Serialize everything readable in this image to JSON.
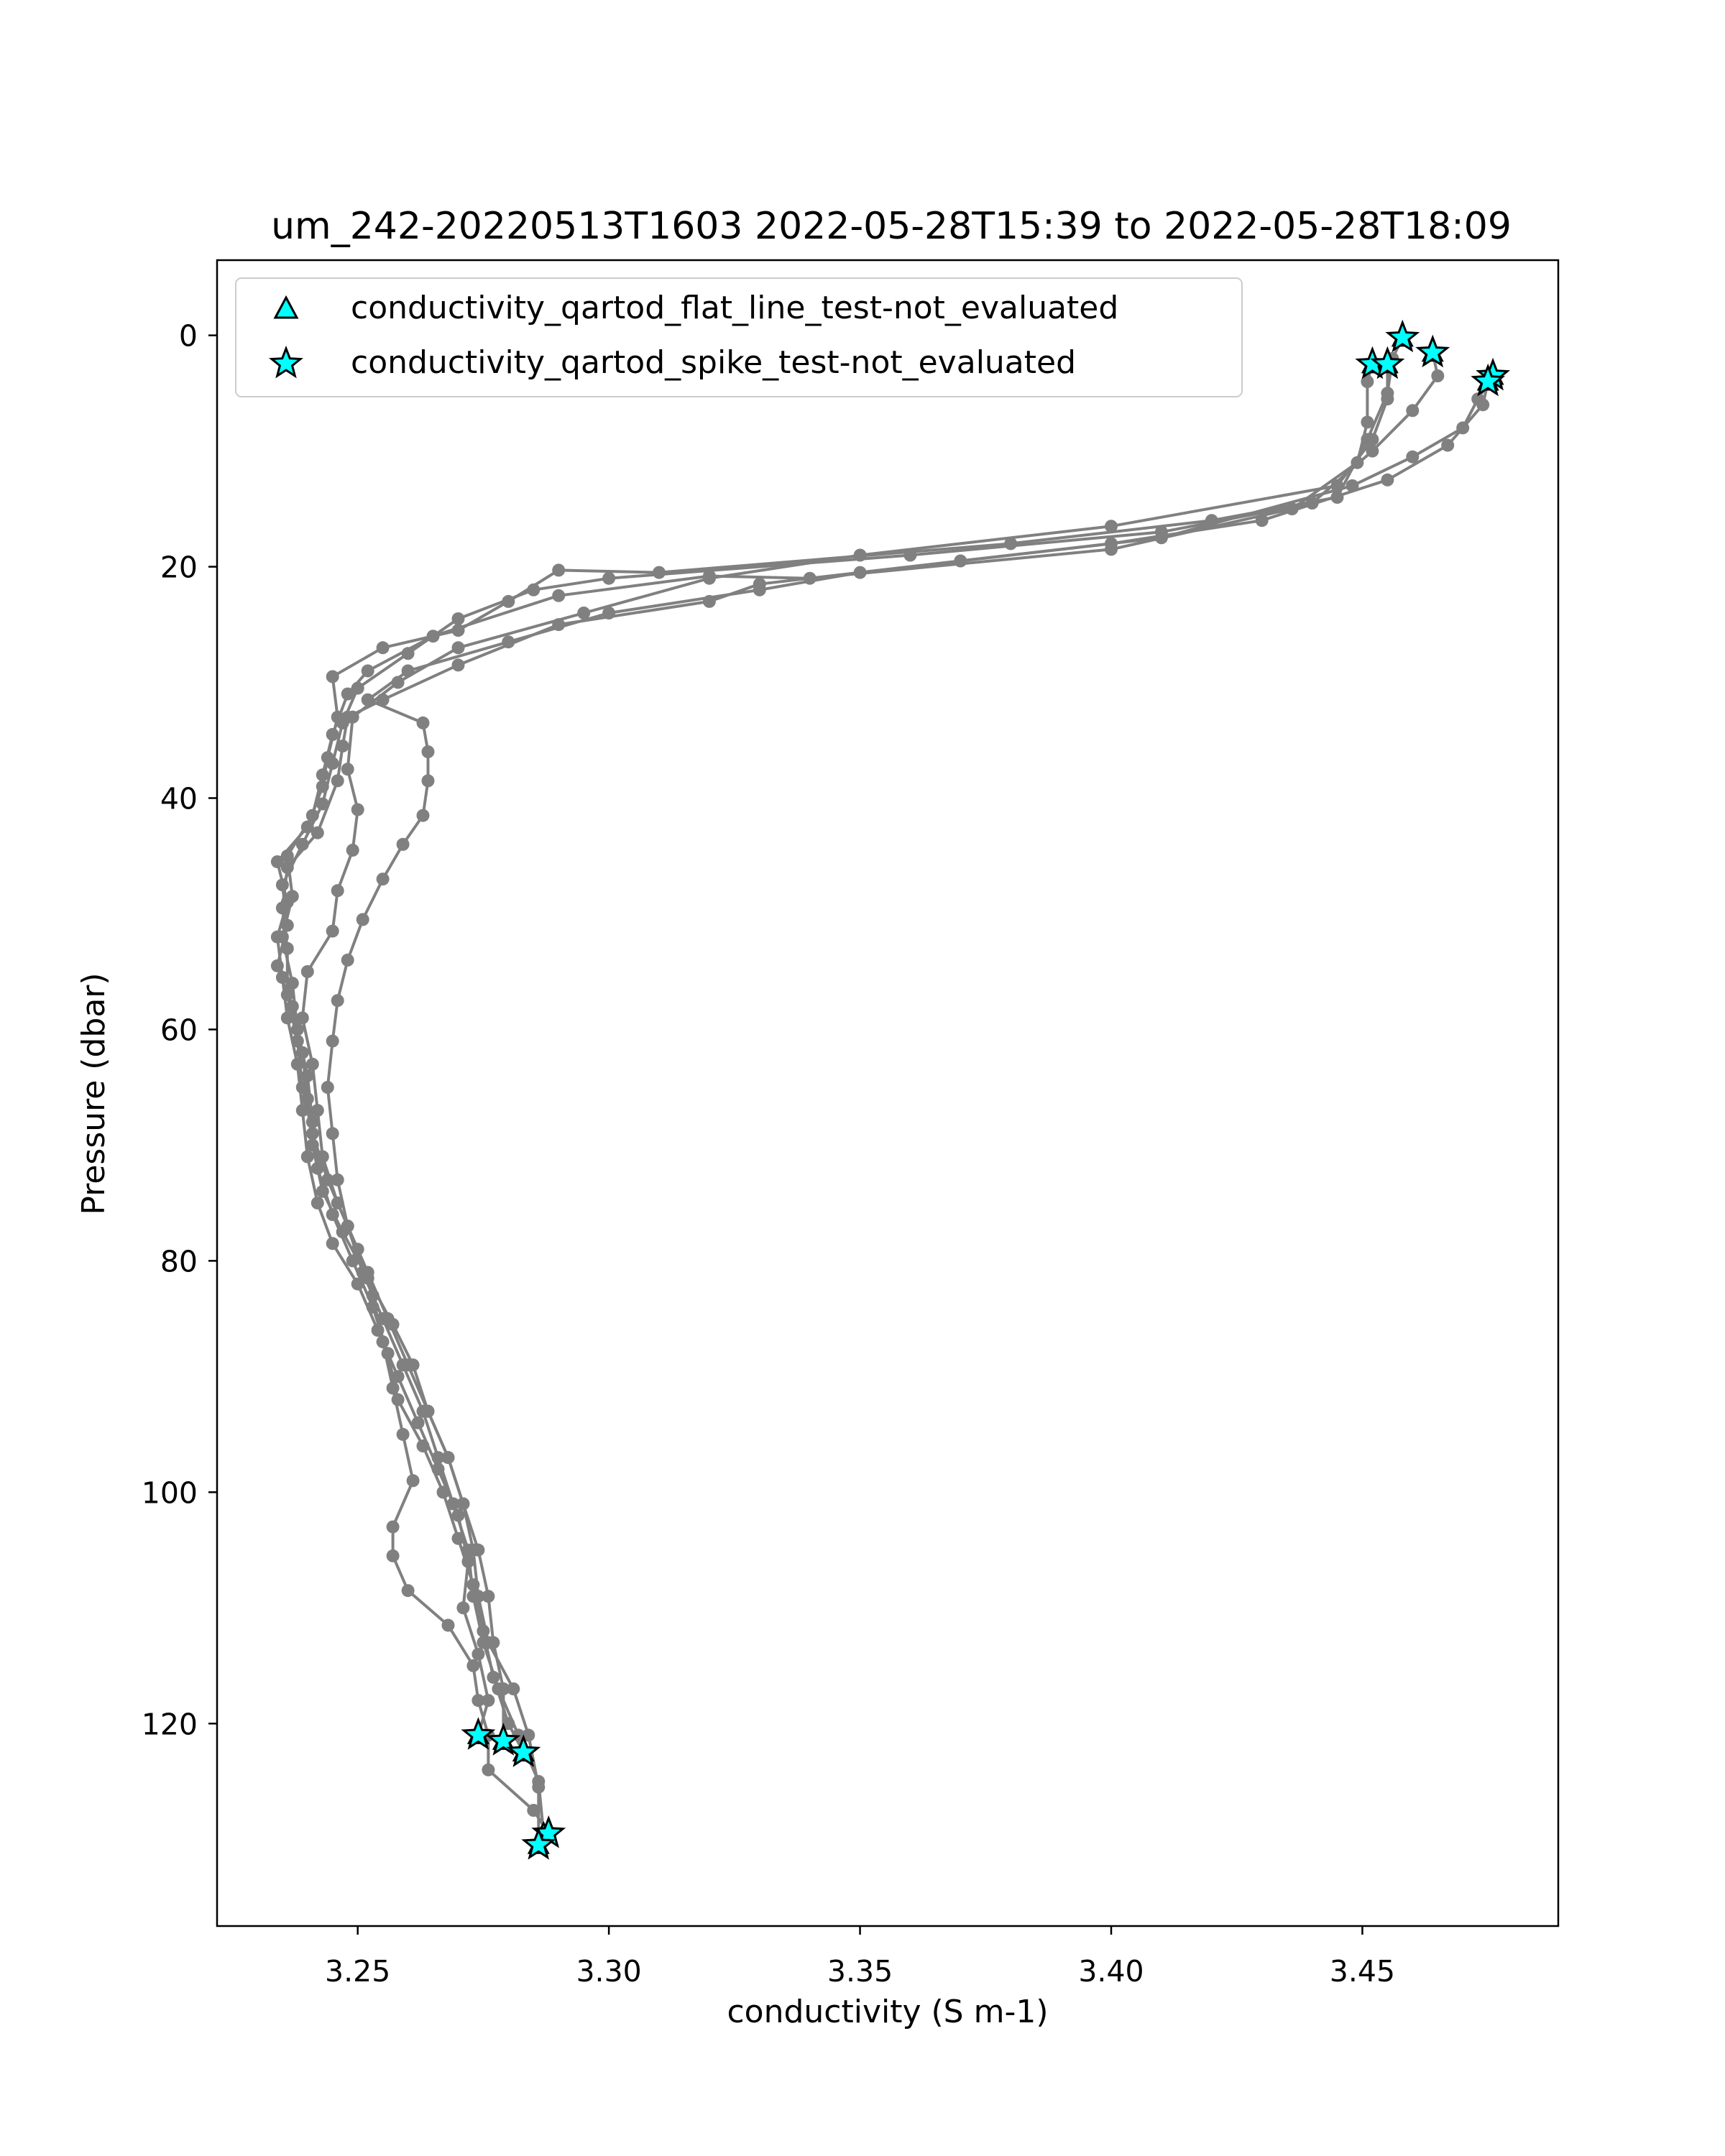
{
  "chart_data": {
    "type": "line",
    "title": "um_242-20220513T1603 2022-05-28T15:39 to 2022-05-28T18:09",
    "xlabel": "conductivity (S m-1)",
    "ylabel": "Pressure (dbar)",
    "xlim": [
      3.222,
      3.489
    ],
    "ylim": [
      137.5,
      -6.5
    ],
    "y_inverted": true,
    "grid": false,
    "legend_position": "top-left",
    "x_ticks": [
      {
        "value": 3.25,
        "label": "3.25"
      },
      {
        "value": 3.3,
        "label": "3.30"
      },
      {
        "value": 3.35,
        "label": "3.35"
      },
      {
        "value": 3.4,
        "label": "3.40"
      },
      {
        "value": 3.45,
        "label": "3.45"
      }
    ],
    "y_ticks": [
      {
        "value": 0,
        "label": "0"
      },
      {
        "value": 20,
        "label": "20"
      },
      {
        "value": 40,
        "label": "40"
      },
      {
        "value": 60,
        "label": "60"
      },
      {
        "value": 80,
        "label": "80"
      },
      {
        "value": 100,
        "label": "100"
      },
      {
        "value": 120,
        "label": "120"
      }
    ],
    "line_color": "#808080",
    "marker_color": "#00ffff",
    "legend": [
      {
        "label": "conductivity_qartod_flat_line_test-not_evaluated",
        "marker": "triangle",
        "color": "#00ffff"
      },
      {
        "label": "conductivity_qartod_spike_test-not_evaluated",
        "marker": "star",
        "color": "#00ffff"
      }
    ],
    "series": [
      {
        "points": [
          [
            3.458,
            0.2
          ],
          [
            3.456,
            2.0
          ],
          [
            3.455,
            5.0
          ],
          [
            3.451,
            9.0
          ],
          [
            3.445,
            14.0
          ],
          [
            3.42,
            16.0
          ],
          [
            3.38,
            18.0
          ],
          [
            3.31,
            20.5
          ],
          [
            3.29,
            20.3
          ],
          [
            3.28,
            23.0
          ],
          [
            3.27,
            25.5
          ],
          [
            3.255,
            27.0
          ],
          [
            3.245,
            29.5
          ],
          [
            3.246,
            33.0
          ],
          [
            3.244,
            36.5
          ],
          [
            3.243,
            39.0
          ],
          [
            3.24,
            42.5
          ],
          [
            3.234,
            45.5
          ],
          [
            3.236,
            49.0
          ],
          [
            3.234,
            52.0
          ],
          [
            3.235,
            55.5
          ],
          [
            3.236,
            59.0
          ],
          [
            3.238,
            63.0
          ],
          [
            3.239,
            67.0
          ],
          [
            3.24,
            71.0
          ],
          [
            3.242,
            75.0
          ],
          [
            3.245,
            78.5
          ],
          [
            3.25,
            82.0
          ],
          [
            3.254,
            86.0
          ],
          [
            3.258,
            90.0
          ],
          [
            3.262,
            94.0
          ],
          [
            3.266,
            98.0
          ],
          [
            3.27,
            102.0
          ],
          [
            3.272,
            106.0
          ],
          [
            3.271,
            110.0
          ],
          [
            3.274,
            114.0
          ],
          [
            3.276,
            118.0
          ],
          [
            3.274,
            121.0
          ]
        ]
      },
      {
        "points": [
          [
            3.464,
            1.5
          ],
          [
            3.465,
            3.5
          ],
          [
            3.46,
            6.5
          ],
          [
            3.452,
            10.0
          ],
          [
            3.44,
            14.5
          ],
          [
            3.41,
            17.0
          ],
          [
            3.36,
            19.0
          ],
          [
            3.3,
            21.0
          ],
          [
            3.285,
            22.0
          ],
          [
            3.27,
            24.5
          ],
          [
            3.26,
            27.5
          ],
          [
            3.25,
            30.5
          ],
          [
            3.247,
            33.5
          ],
          [
            3.245,
            37.0
          ],
          [
            3.243,
            40.5
          ],
          [
            3.239,
            44.0
          ],
          [
            3.235,
            47.5
          ],
          [
            3.236,
            51.0
          ],
          [
            3.234,
            54.5
          ],
          [
            3.237,
            58.0
          ],
          [
            3.239,
            62.0
          ],
          [
            3.24,
            66.0
          ],
          [
            3.241,
            70.0
          ],
          [
            3.243,
            74.0
          ],
          [
            3.247,
            77.5
          ],
          [
            3.252,
            81.5
          ],
          [
            3.257,
            85.5
          ],
          [
            3.261,
            89.0
          ],
          [
            3.264,
            93.0
          ],
          [
            3.268,
            97.0
          ],
          [
            3.271,
            101.0
          ],
          [
            3.274,
            105.0
          ],
          [
            3.276,
            109.0
          ],
          [
            3.277,
            113.0
          ],
          [
            3.279,
            117.0
          ],
          [
            3.279,
            121.5
          ]
        ]
      },
      {
        "points": [
          [
            3.452,
            2.5
          ],
          [
            3.451,
            4.0
          ],
          [
            3.451,
            7.5
          ],
          [
            3.449,
            11.0
          ],
          [
            3.436,
            15.0
          ],
          [
            3.4,
            18.5
          ],
          [
            3.34,
            21.0
          ],
          [
            3.32,
            20.8
          ],
          [
            3.29,
            22.5
          ],
          [
            3.265,
            26.0
          ],
          [
            3.252,
            29.0
          ],
          [
            3.248,
            31.0
          ],
          [
            3.245,
            34.5
          ],
          [
            3.243,
            38.0
          ],
          [
            3.241,
            41.5
          ],
          [
            3.236,
            45.0
          ],
          [
            3.237,
            48.5
          ],
          [
            3.235,
            52.0
          ],
          [
            3.237,
            56.0
          ],
          [
            3.238,
            60.0
          ],
          [
            3.24,
            64.0
          ],
          [
            3.241,
            68.0
          ],
          [
            3.242,
            72.0
          ],
          [
            3.245,
            76.0
          ],
          [
            3.249,
            80.0
          ],
          [
            3.253,
            84.0
          ],
          [
            3.256,
            88.0
          ],
          [
            3.258,
            92.0
          ],
          [
            3.263,
            96.0
          ],
          [
            3.267,
            100.0
          ],
          [
            3.27,
            104.0
          ],
          [
            3.273,
            108.0
          ],
          [
            3.275,
            112.0
          ],
          [
            3.277,
            116.0
          ],
          [
            3.28,
            120.0
          ],
          [
            3.283,
            122.5
          ]
        ]
      },
      {
        "points": [
          [
            3.476,
            3.5
          ],
          [
            3.473,
            5.5
          ],
          [
            3.47,
            8.0
          ],
          [
            3.46,
            10.5
          ],
          [
            3.448,
            13.0
          ],
          [
            3.41,
            17.5
          ],
          [
            3.37,
            19.5
          ],
          [
            3.33,
            21.5
          ],
          [
            3.32,
            23.0
          ],
          [
            3.29,
            25.0
          ],
          [
            3.27,
            28.5
          ],
          [
            3.255,
            31.5
          ],
          [
            3.248,
            33.0
          ],
          [
            3.247,
            35.5
          ],
          [
            3.246,
            38.5
          ],
          [
            3.242,
            43.0
          ],
          [
            3.236,
            46.0
          ],
          [
            3.235,
            49.5
          ],
          [
            3.236,
            53.0
          ],
          [
            3.236,
            57.0
          ],
          [
            3.238,
            61.0
          ],
          [
            3.239,
            65.0
          ],
          [
            3.241,
            69.0
          ],
          [
            3.244,
            73.0
          ],
          [
            3.248,
            77.0
          ],
          [
            3.251,
            81.0
          ],
          [
            3.255,
            85.0
          ],
          [
            3.259,
            89.0
          ],
          [
            3.263,
            93.0
          ],
          [
            3.266,
            97.0
          ],
          [
            3.269,
            101.0
          ],
          [
            3.272,
            105.0
          ],
          [
            3.273,
            109.0
          ],
          [
            3.275,
            113.0
          ],
          [
            3.278,
            117.0
          ],
          [
            3.282,
            121.0
          ],
          [
            3.286,
            125.0
          ],
          [
            3.287,
            129.5
          ]
        ]
      },
      {
        "points": [
          [
            3.475,
            4.0
          ],
          [
            3.474,
            6.0
          ],
          [
            3.467,
            9.5
          ],
          [
            3.455,
            12.5
          ],
          [
            3.43,
            16.0
          ],
          [
            3.4,
            18.0
          ],
          [
            3.35,
            20.5
          ],
          [
            3.33,
            22.0
          ],
          [
            3.3,
            24.0
          ],
          [
            3.28,
            26.5
          ],
          [
            3.26,
            29.0
          ],
          [
            3.252,
            31.5
          ],
          [
            3.263,
            33.5
          ],
          [
            3.264,
            36.0
          ],
          [
            3.264,
            38.5
          ],
          [
            3.263,
            41.5
          ],
          [
            3.259,
            44.0
          ],
          [
            3.255,
            47.0
          ],
          [
            3.251,
            50.5
          ],
          [
            3.248,
            54.0
          ],
          [
            3.246,
            57.5
          ],
          [
            3.245,
            61.0
          ],
          [
            3.244,
            65.0
          ],
          [
            3.245,
            69.0
          ],
          [
            3.246,
            73.0
          ],
          [
            3.248,
            77.0
          ],
          [
            3.252,
            81.0
          ],
          [
            3.256,
            85.0
          ],
          [
            3.26,
            89.0
          ],
          [
            3.264,
            93.0
          ],
          [
            3.268,
            97.0
          ],
          [
            3.271,
            101.0
          ],
          [
            3.273,
            105.0
          ],
          [
            3.274,
            109.0
          ],
          [
            3.276,
            113.0
          ],
          [
            3.281,
            117.0
          ],
          [
            3.284,
            121.0
          ],
          [
            3.286,
            125.5
          ],
          [
            3.286,
            130.5
          ]
        ]
      },
      {
        "points": [
          [
            3.455,
            2.5
          ],
          [
            3.455,
            5.5
          ],
          [
            3.452,
            9.0
          ],
          [
            3.445,
            13.0
          ],
          [
            3.4,
            16.5
          ],
          [
            3.35,
            19.0
          ],
          [
            3.32,
            21.0
          ],
          [
            3.295,
            24.0
          ],
          [
            3.27,
            27.0
          ],
          [
            3.258,
            30.0
          ],
          [
            3.249,
            33.0
          ],
          [
            3.248,
            37.5
          ],
          [
            3.25,
            41.0
          ],
          [
            3.249,
            44.5
          ],
          [
            3.246,
            48.0
          ],
          [
            3.245,
            51.5
          ],
          [
            3.24,
            55.0
          ],
          [
            3.239,
            59.0
          ],
          [
            3.241,
            63.0
          ],
          [
            3.242,
            67.0
          ],
          [
            3.243,
            71.0
          ],
          [
            3.246,
            75.0
          ],
          [
            3.25,
            79.0
          ],
          [
            3.253,
            83.0
          ],
          [
            3.255,
            87.0
          ],
          [
            3.257,
            91.0
          ],
          [
            3.259,
            95.0
          ],
          [
            3.261,
            99.0
          ],
          [
            3.257,
            103.0
          ],
          [
            3.257,
            105.5
          ],
          [
            3.26,
            108.5
          ],
          [
            3.268,
            111.5
          ],
          [
            3.273,
            115.0
          ],
          [
            3.274,
            118.0
          ],
          [
            3.276,
            121.0
          ],
          [
            3.276,
            124.0
          ],
          [
            3.285,
            127.5
          ],
          [
            3.288,
            129.5
          ]
        ]
      }
    ],
    "flat_line_not_evaluated": [
      [
        3.458,
        0.2
      ],
      [
        3.464,
        1.5
      ],
      [
        3.452,
        2.5
      ],
      [
        3.455,
        2.5
      ],
      [
        3.476,
        3.5
      ],
      [
        3.475,
        4.0
      ],
      [
        3.274,
        121.0
      ],
      [
        3.279,
        121.5
      ],
      [
        3.283,
        122.5
      ],
      [
        3.287,
        129.5
      ],
      [
        3.286,
        130.5
      ]
    ],
    "spike_not_evaluated": [
      [
        3.458,
        0.2
      ],
      [
        3.464,
        1.5
      ],
      [
        3.452,
        2.5
      ],
      [
        3.455,
        2.5
      ],
      [
        3.476,
        3.5
      ],
      [
        3.475,
        4.0
      ],
      [
        3.274,
        121.0
      ],
      [
        3.279,
        121.5
      ],
      [
        3.283,
        122.5
      ],
      [
        3.288,
        129.5
      ],
      [
        3.286,
        130.5
      ]
    ]
  }
}
